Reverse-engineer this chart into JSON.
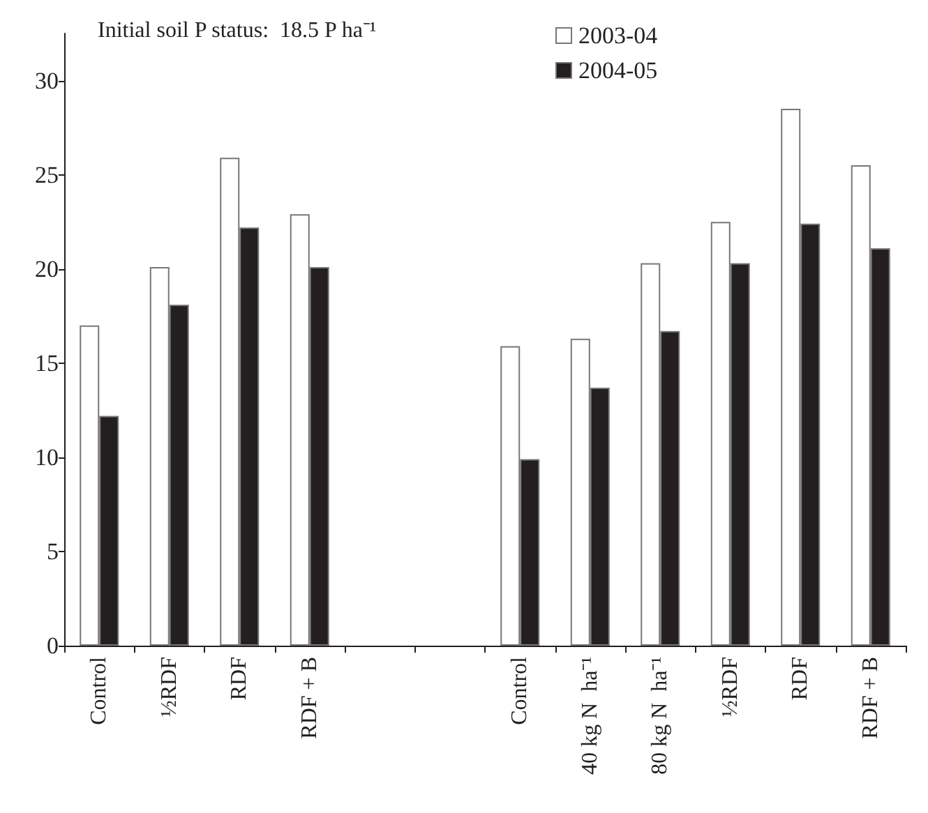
{
  "chart_data": {
    "type": "bar",
    "categories": [
      "Control",
      "½RDF",
      "RDF",
      "RDF + B",
      null,
      null,
      "Control",
      "40 kg N  ha⁻¹",
      "80 kg N  ha⁻¹",
      "½RDF",
      "RDF",
      "RDF + B"
    ],
    "series": [
      {
        "name": "2003-04",
        "color": "#ffffff",
        "values": [
          17.0,
          20.1,
          25.9,
          22.9,
          null,
          null,
          15.9,
          16.3,
          20.3,
          22.5,
          28.5,
          25.5
        ]
      },
      {
        "name": "2004-05",
        "color": "#231f20",
        "values": [
          12.2,
          18.1,
          22.2,
          20.1,
          null,
          null,
          9.9,
          13.7,
          16.7,
          20.3,
          22.4,
          21.1
        ]
      }
    ],
    "ylim": [
      0,
      32.5
    ],
    "yticks": [
      0,
      5,
      10,
      15,
      20,
      25,
      30
    ],
    "annotations": [
      "Initial soil P status:  18.5 P ha⁻¹"
    ],
    "legend": "top",
    "grid": false
  }
}
